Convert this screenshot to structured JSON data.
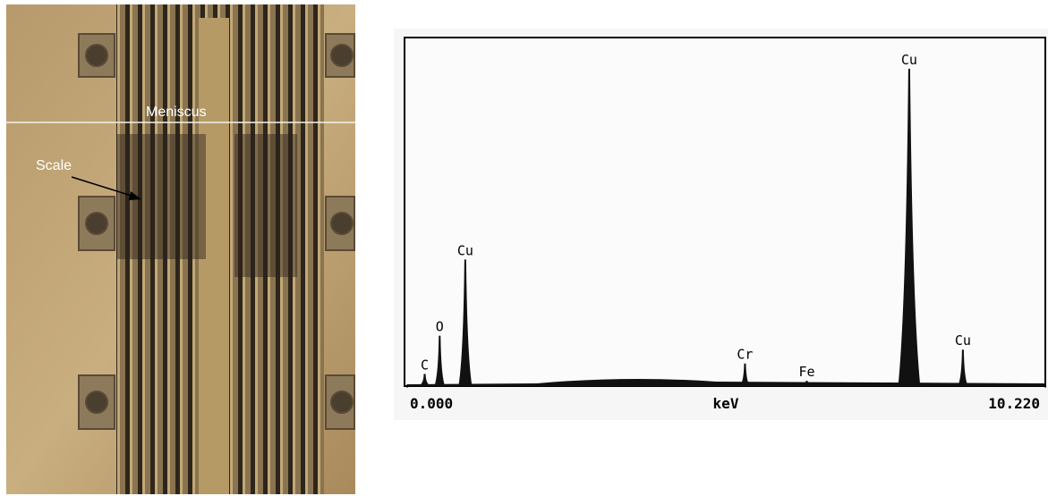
{
  "photo": {
    "labels": [
      "Meniscus",
      "Scale"
    ]
  },
  "spectrum": {
    "x_axis_label": "keV",
    "xlim": [
      0,
      10.22
    ],
    "xticks": [
      {
        "value": 0,
        "label": "0.000"
      },
      {
        "value": 10.22,
        "label": "10.220"
      }
    ],
    "ylim": [
      0,
      100
    ],
    "peaks": [
      {
        "label": "C",
        "energy": 0.28,
        "height": 3
      },
      {
        "label": "O",
        "energy": 0.52,
        "height": 14
      },
      {
        "label": "Cu",
        "energy": 0.93,
        "height": 36
      },
      {
        "label": "Cr",
        "energy": 5.41,
        "height": 6
      },
      {
        "label": "Fe",
        "energy": 6.4,
        "height": 1
      },
      {
        "label": "Cu",
        "energy": 8.04,
        "height": 91
      },
      {
        "label": "Cu",
        "energy": 8.9,
        "height": 10
      }
    ]
  }
}
